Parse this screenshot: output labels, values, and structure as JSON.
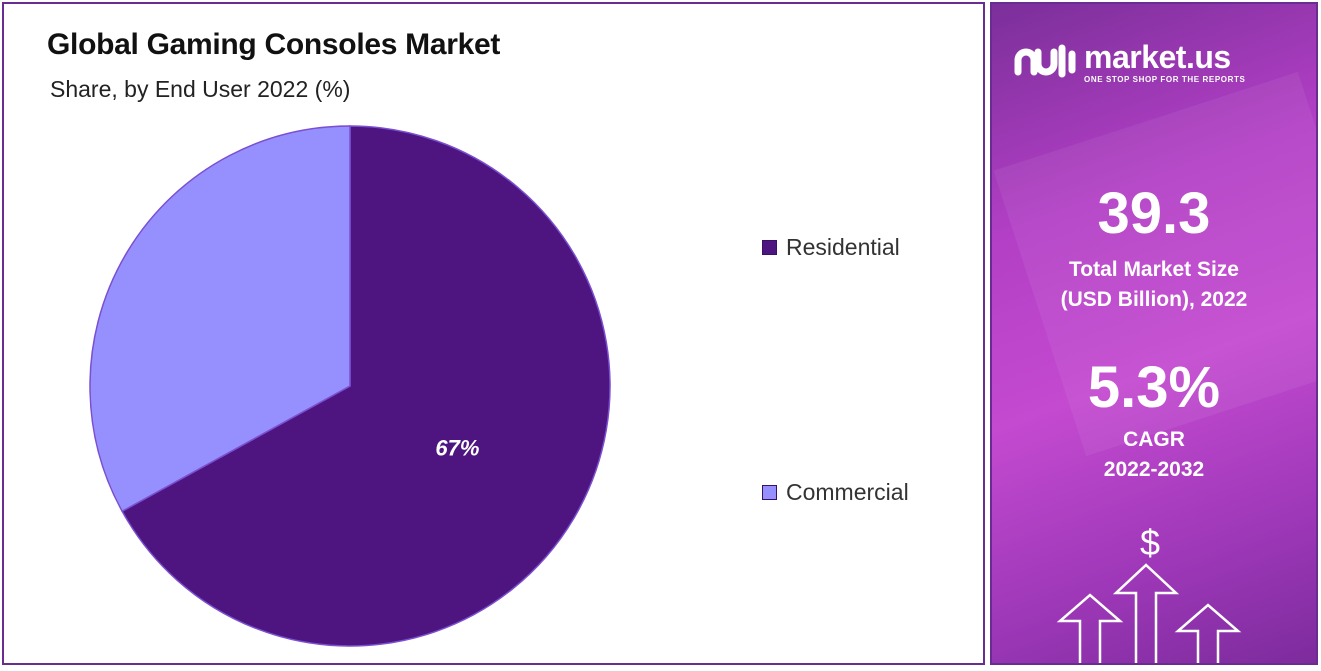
{
  "header": {
    "title": "Global Gaming Consoles Market",
    "subtitle": "Share, by End User 2022 (%)"
  },
  "chart_data": {
    "type": "pie",
    "title": "Global Gaming Consoles Market",
    "subtitle": "Share, by End User 2022 (%)",
    "categories": [
      "Residential",
      "Commercial"
    ],
    "values": [
      67,
      33
    ],
    "data_labels": [
      "67%",
      ""
    ],
    "colors": [
      "#4e1580",
      "#9690ff"
    ],
    "legend_position": "right"
  },
  "legend": {
    "items": [
      {
        "label": "Residential",
        "color": "#4e1580"
      },
      {
        "label": "Commercial",
        "color": "#9690ff"
      }
    ]
  },
  "side_panel": {
    "brand_name": "market.us",
    "brand_tagline": "ONE STOP SHOP FOR THE REPORTS",
    "market_size_value": "39.3",
    "market_size_label_line1": "Total Market Size",
    "market_size_label_line2": "(USD Billion), 2022",
    "cagr_value": "5.3%",
    "cagr_label_line1": "CAGR",
    "cagr_label_line2": "2022-2032",
    "dollar_symbol": "$",
    "icons": [
      "brand-logo-icon",
      "dollar-icon",
      "up-arrow-icon"
    ]
  },
  "colors": {
    "border": "#6a2c91",
    "residential": "#4e1580",
    "commercial": "#9690ff",
    "panel_start": "#7b2f9a",
    "panel_end": "#c44ad0"
  }
}
